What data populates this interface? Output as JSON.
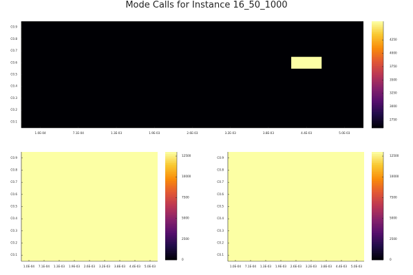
{
  "title": "Mode Calls for Instance 16_50_1000",
  "chart_data": [
    {
      "type": "heatmap",
      "id": "top",
      "x_ticks": [
        "1.0E-04",
        "7.1E-04",
        "1.3E-03",
        "1.9E-03",
        "2.6E-03",
        "3.2E-03",
        "3.8E-03",
        "4.4E-03",
        "5.0E-03"
      ],
      "y_ticks": [
        "C0.1",
        "C0.2",
        "C0.3",
        "C0.4",
        "C0.5",
        "C0.6",
        "C0.7",
        "C0.8",
        "C0.9"
      ],
      "base_value": 2600,
      "highlight": {
        "x_index_range": [
          6.6,
          7.4
        ],
        "y_index": 5,
        "value": 4600
      },
      "colorbar": {
        "min": 2600,
        "max": 4600,
        "ticks": [
          2750,
          3000,
          3250,
          3500,
          3750,
          4000,
          4250
        ]
      }
    },
    {
      "type": "heatmap",
      "id": "bottom-left",
      "x_ticks": [
        "1.0E-04",
        "7.1E-04",
        "1.3E-03",
        "1.9E-03",
        "2.6E-03",
        "3.2E-03",
        "3.8E-03",
        "4.4E-03",
        "5.0E-03"
      ],
      "y_ticks": [
        "C0.1",
        "C0.2",
        "C0.3",
        "C0.4",
        "C0.5",
        "C0.6",
        "C0.7",
        "C0.8",
        "C0.9"
      ],
      "base_value": 13000,
      "colorbar": {
        "min": 0,
        "max": 13000,
        "ticks": [
          0,
          2500,
          5000,
          7500,
          10000,
          12500
        ]
      }
    },
    {
      "type": "heatmap",
      "id": "bottom-right",
      "x_ticks": [
        "1.0E-04",
        "7.1E-04",
        "1.3E-03",
        "1.9E-03",
        "2.6E-03",
        "3.2E-03",
        "3.8E-03",
        "4.4E-03",
        "5.0E-03"
      ],
      "y_ticks": [
        "C0.1",
        "C0.2",
        "C0.3",
        "C0.4",
        "C0.5",
        "C0.6",
        "C0.7",
        "C0.8",
        "C0.9"
      ],
      "base_value": 13000,
      "colorbar": {
        "min": 0,
        "max": 13000,
        "ticks": [
          0,
          2500,
          5000,
          7500,
          10000,
          12500
        ]
      }
    }
  ]
}
